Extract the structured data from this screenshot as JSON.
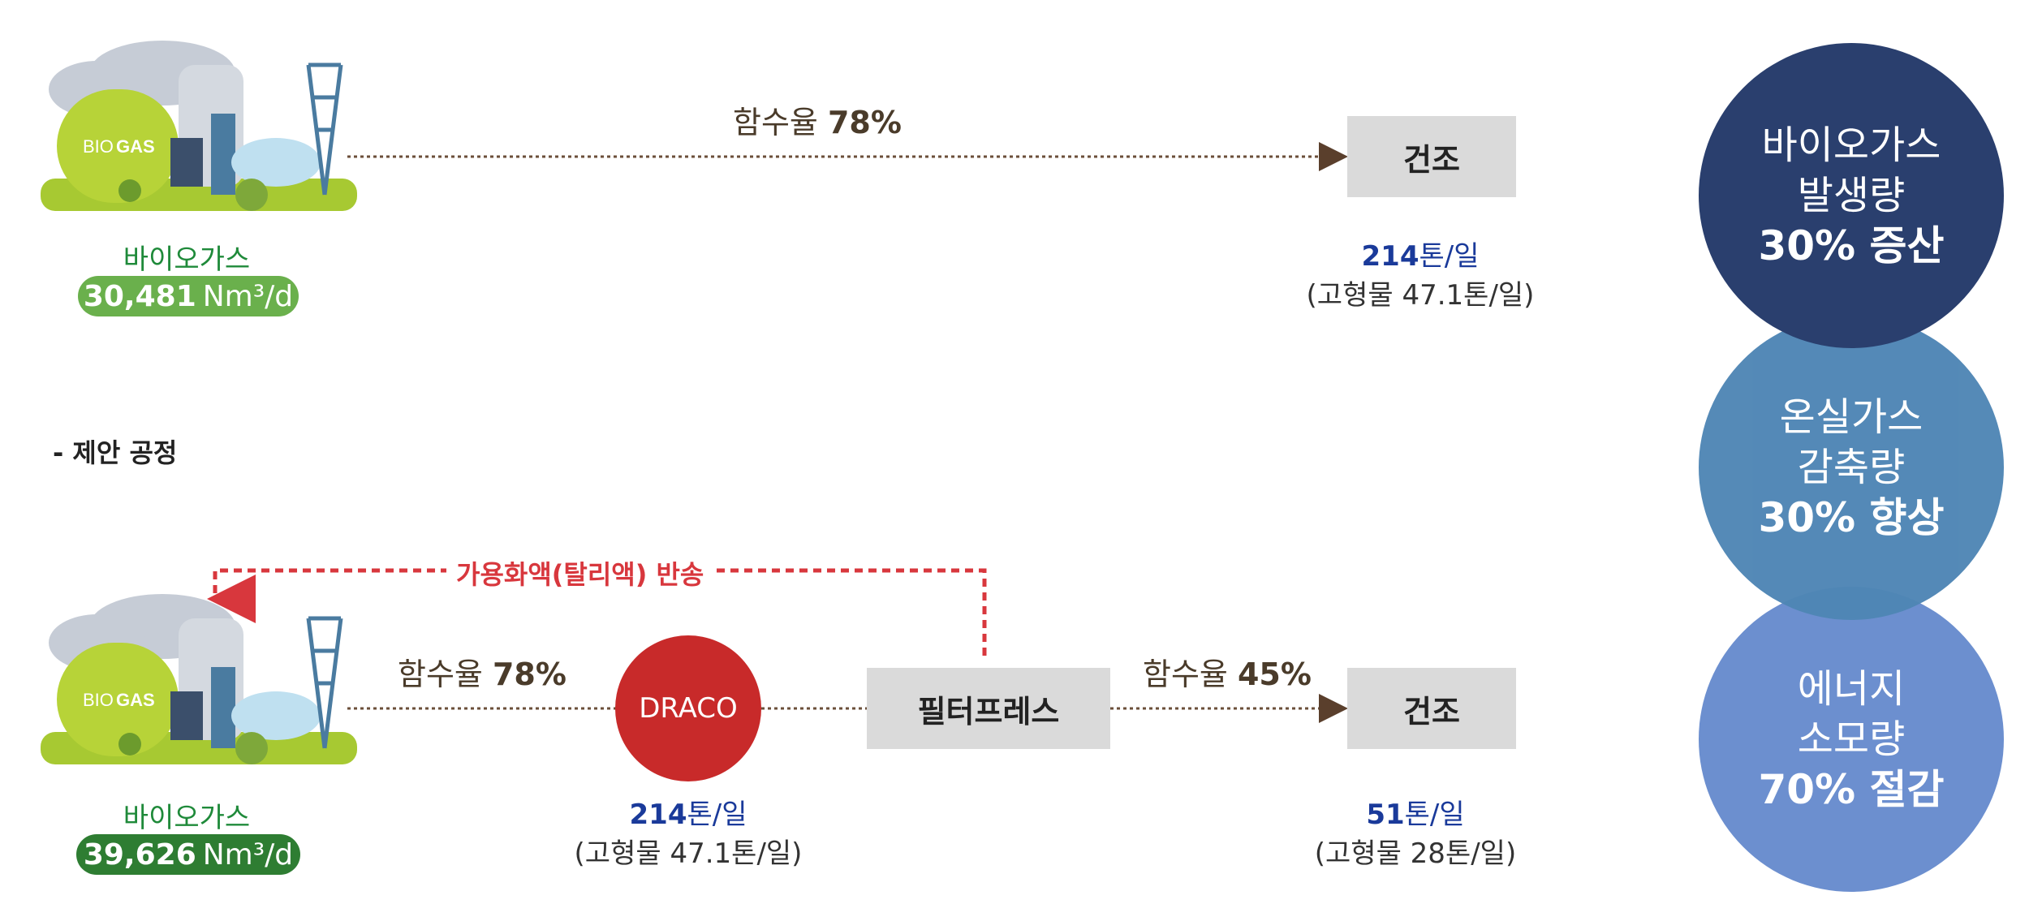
{
  "current_process": {
    "biogas_label": "바이오가스",
    "biogas_amount_number": "30,481",
    "biogas_amount_unit": "Nm³/d",
    "moisture_label": "함수율",
    "moisture_value": "78%",
    "dry_box": "건조",
    "output_number": "214",
    "output_unit": "톤/일",
    "output_solids": "(고형물 47.1톤/일)"
  },
  "proposed_section_title": "- 제안 공정",
  "proposed_process": {
    "recycle_label": "가용화액(탈리액) 반송",
    "moisture1_label": "함수율",
    "moisture1_value": "78%",
    "draco_label": "DRACO",
    "draco_output_number": "214",
    "draco_output_unit": "톤/일",
    "draco_output_solids": "(고형물 47.1톤/일)",
    "filter_press": "필터프레스",
    "moisture2_label": "함수율",
    "moisture2_value": "45%",
    "dry_box": "건조",
    "final_output_number": "51",
    "final_output_unit": "톤/일",
    "final_output_solids": "(고형물 28톤/일)",
    "biogas_label": "바이오가스",
    "biogas_amount_number": "39,626",
    "biogas_amount_unit": "Nm³/d"
  },
  "plant_text": {
    "bio": "BIO",
    "gas": "GAS"
  },
  "benefits": [
    {
      "line1": "바이오가스",
      "line2": "발생량",
      "line3": "30% 증산",
      "color": "#2a3f6e"
    },
    {
      "line1": "온실가스",
      "line2": "감축량",
      "line3": "30% 향상",
      "color": "#4f86b5"
    },
    {
      "line1": "에너지",
      "line2": "소모량",
      "line3": "70% 절감",
      "color": "#6c8fcf"
    }
  ],
  "colors": {
    "green_pill_light": "#6ab04c",
    "green_pill_dark": "#2e7d32",
    "arrow": "#6b4f3a",
    "recycle": "#d8373d"
  }
}
